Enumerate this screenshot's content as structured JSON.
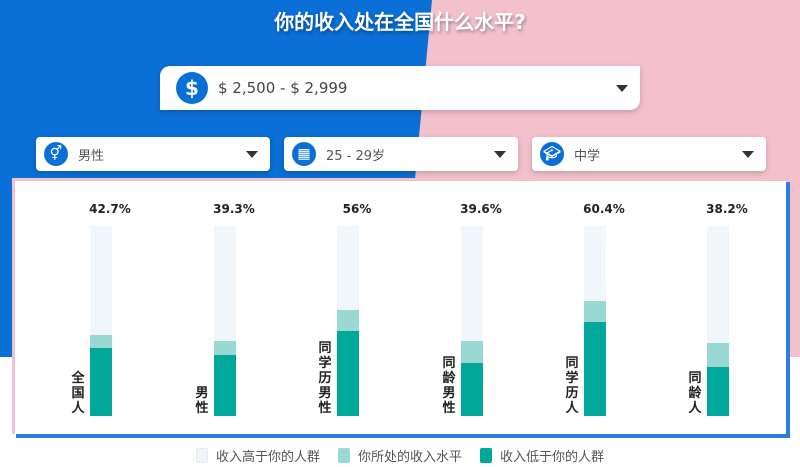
{
  "title": "你的收入处在全国什么水平?",
  "income_select": {
    "value": "$ 2,500 - $ 2,999",
    "icon": "dollar-icon"
  },
  "filters": [
    {
      "value": "男性",
      "icon": "gender-icon"
    },
    {
      "value": "25 - 29岁",
      "icon": "birthday-cake-icon"
    },
    {
      "value": "中学",
      "icon": "graduation-cap-icon"
    }
  ],
  "colors": {
    "higher": "#f1f6fa",
    "your_level": "#99d8d3",
    "lower": "#00a89a",
    "blue": "#0a6fd6",
    "pink": "#f3c1cb"
  },
  "chart_data": {
    "type": "bar",
    "stacked": true,
    "ylim": [
      0,
      100
    ],
    "categories": [
      "全国人",
      "男性",
      "同学历男性",
      "同龄男性",
      "同学历人",
      "同龄人"
    ],
    "labels": [
      "42.7%",
      "39.3%",
      "56%",
      "39.6%",
      "60.4%",
      "38.2%"
    ],
    "series": [
      {
        "name": "收入低于你的人群",
        "values": [
          36,
          32,
          45,
          28,
          49.5,
          26
        ]
      },
      {
        "name": "你所处的收入水平",
        "values": [
          6.7,
          7.3,
          11,
          11.6,
          10.9,
          12.2
        ]
      },
      {
        "name": "收入高于你的人群",
        "values": [
          57.3,
          60.7,
          44,
          60.4,
          39.6,
          61.8
        ]
      }
    ],
    "legend": "bottom"
  }
}
